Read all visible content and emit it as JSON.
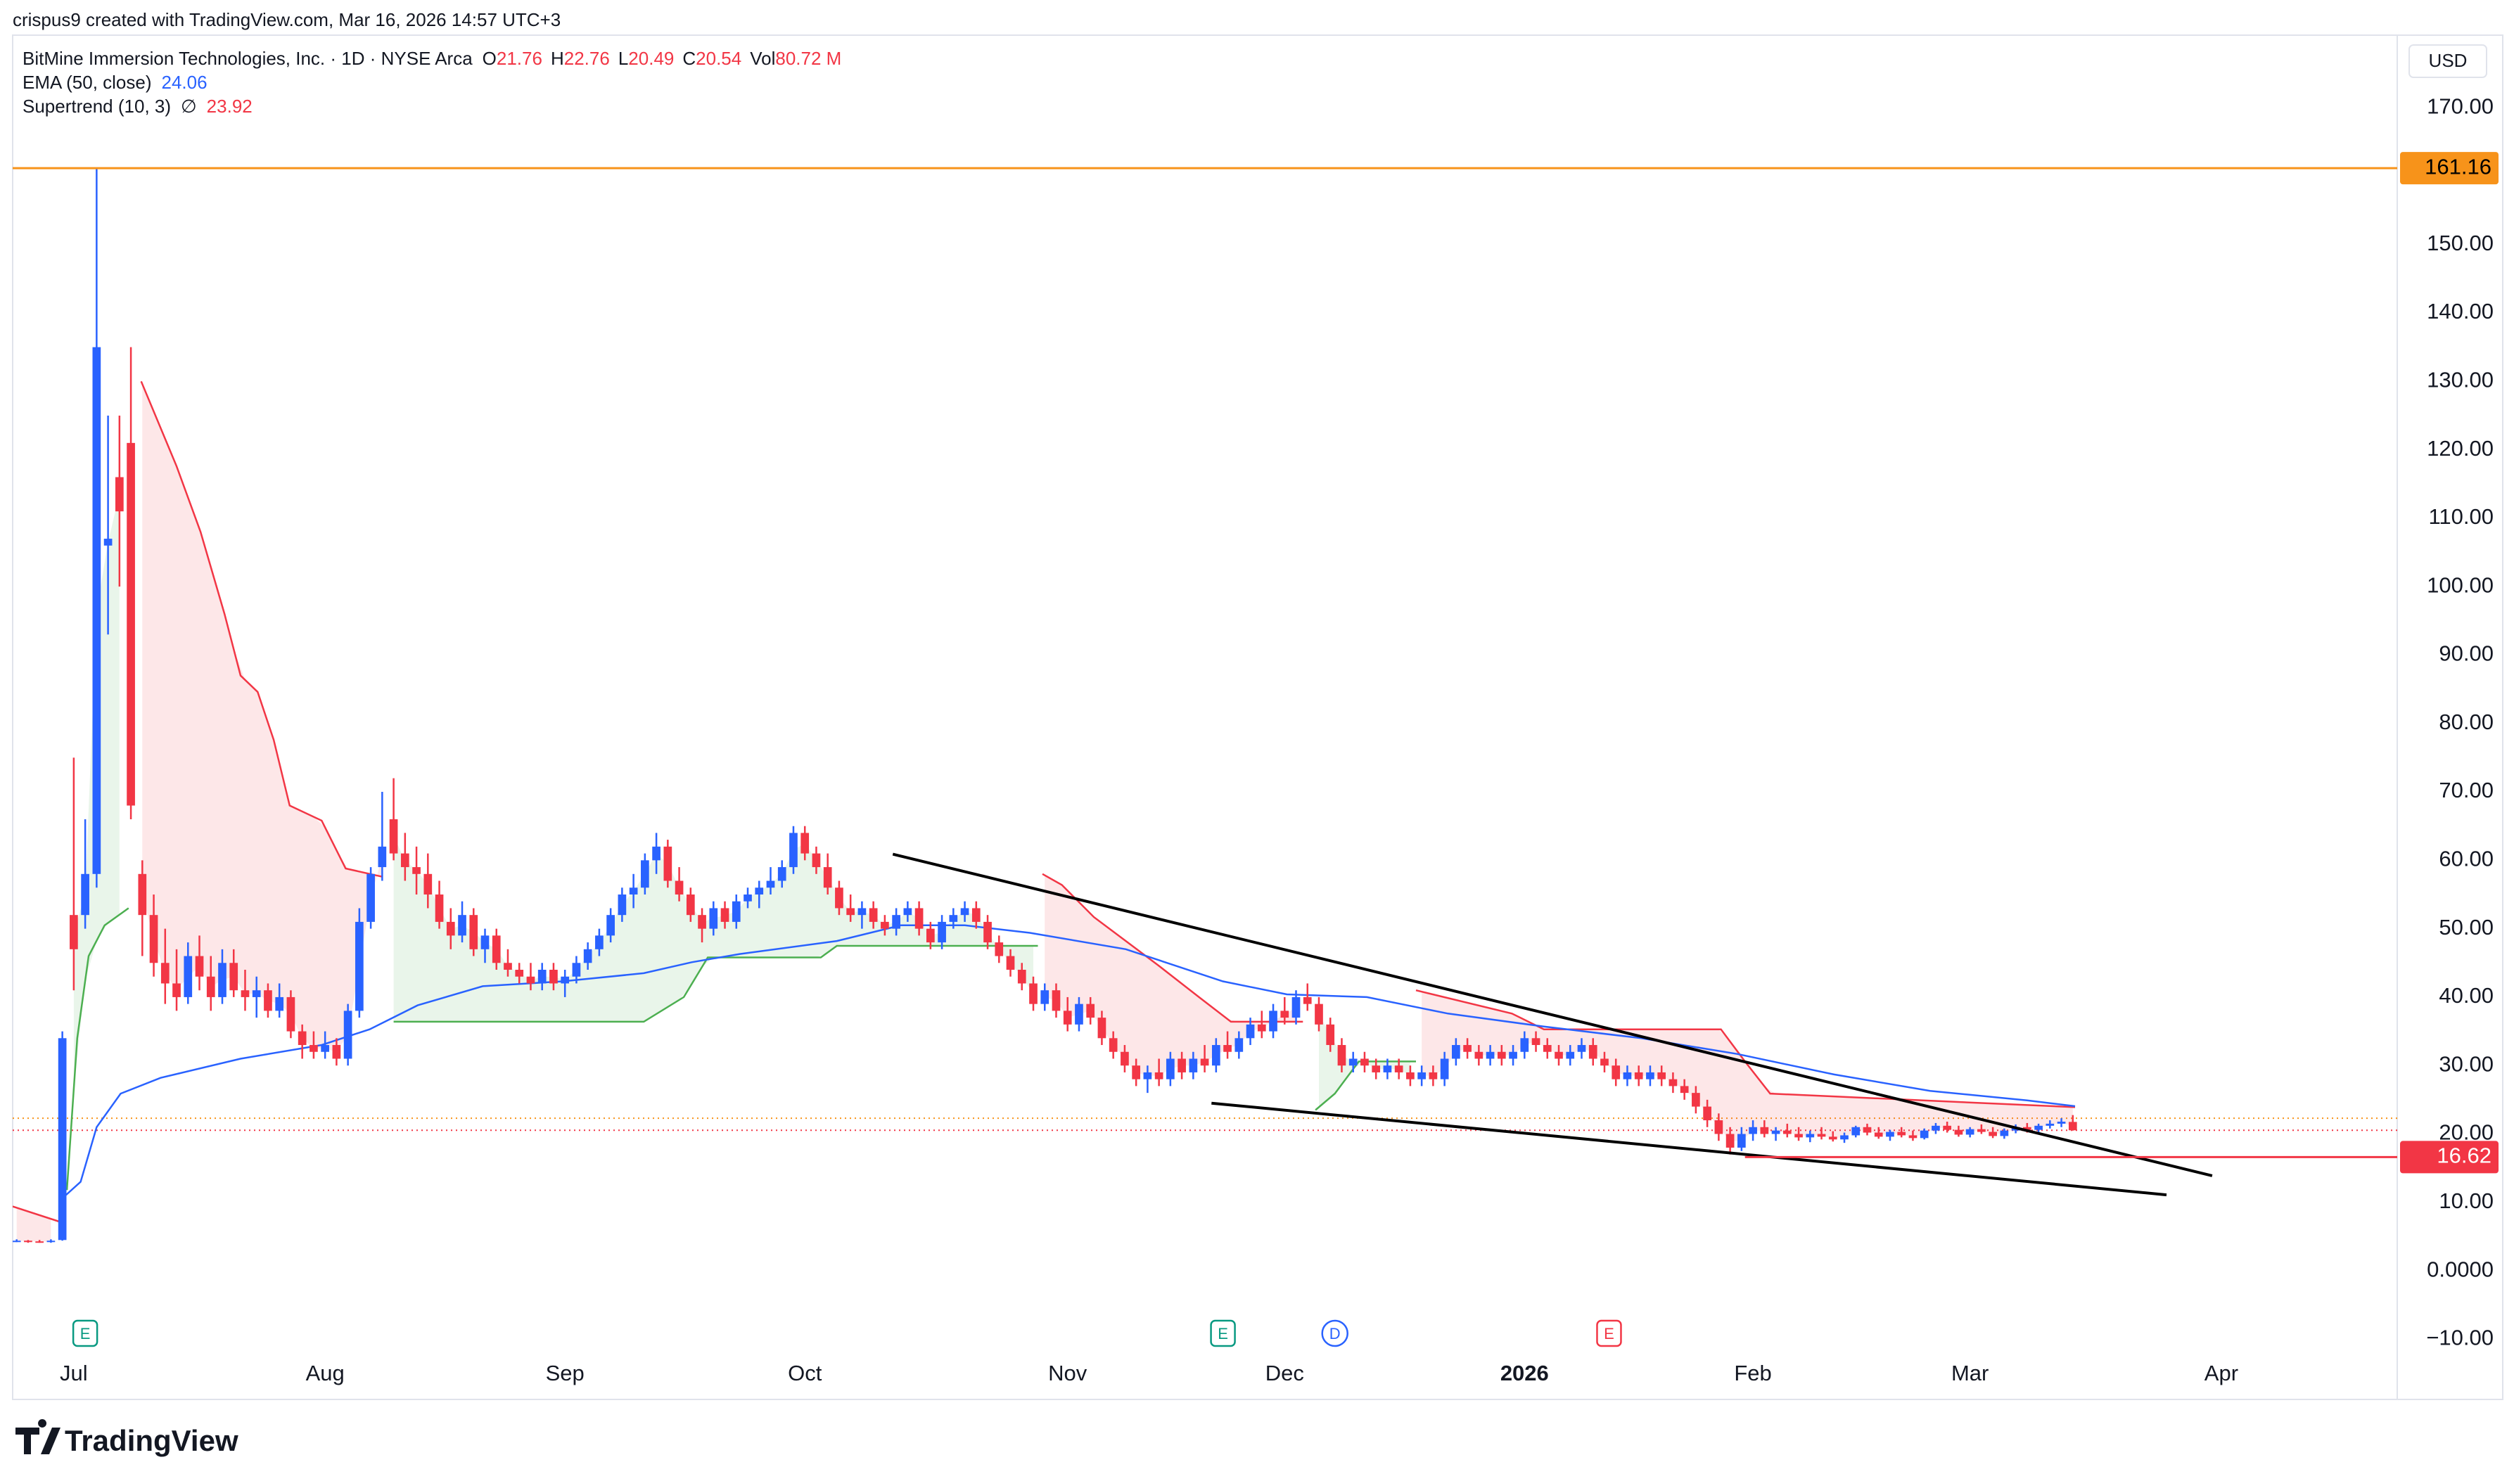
{
  "header": "crispus9 created with TradingView.com, Mar 16, 2026 14:57 UTC+3",
  "footer": "TradingView",
  "chart_data": {
    "type": "candlestick",
    "legend": {
      "symbol": "BitMine Immersion Technologies, Inc. · 1D · NYSE Arca",
      "ohlc": [
        {
          "key": "O",
          "value": "21.76"
        },
        {
          "key": "H",
          "value": "22.76"
        },
        {
          "key": "L",
          "value": "20.49"
        },
        {
          "key": "C",
          "value": "20.54"
        },
        {
          "key": "Vol",
          "value": "80.72 M"
        }
      ],
      "ema": {
        "name": "EMA (50, close)",
        "value": "24.06"
      },
      "supertrend": {
        "name": "Supertrend (10, 3)",
        "symbol": "∅",
        "value": "23.92"
      }
    },
    "currency": "USD",
    "up_color": "#2962ff",
    "down_color": "#f23645",
    "xlim": [
      -0.35,
      208.4
    ],
    "ylim": [
      -18.8,
      180.6
    ],
    "xticks": [
      {
        "value": 5,
        "label": "Jul"
      },
      {
        "value": 27,
        "label": "Aug"
      },
      {
        "value": 48,
        "label": "Sep"
      },
      {
        "value": 69,
        "label": "Oct"
      },
      {
        "value": 92,
        "label": "Nov"
      },
      {
        "value": 111,
        "label": "Dec"
      },
      {
        "value": 132,
        "label": "2026",
        "bold": true
      },
      {
        "value": 152,
        "label": "Feb"
      },
      {
        "value": 171,
        "label": "Mar"
      },
      {
        "value": 193,
        "label": "Apr"
      }
    ],
    "yticks": [
      {
        "value": 170,
        "label": "170.00"
      },
      {
        "value": 150,
        "label": "150.00"
      },
      {
        "value": 140,
        "label": "140.00"
      },
      {
        "value": 130,
        "label": "130.00"
      },
      {
        "value": 120,
        "label": "120.00"
      },
      {
        "value": 110,
        "label": "110.00"
      },
      {
        "value": 100,
        "label": "100.00"
      },
      {
        "value": 90,
        "label": "90.00"
      },
      {
        "value": 80,
        "label": "80.00"
      },
      {
        "value": 70,
        "label": "70.00"
      },
      {
        "value": 60,
        "label": "60.00"
      },
      {
        "value": 50,
        "label": "50.00"
      },
      {
        "value": 40,
        "label": "40.00"
      },
      {
        "value": 30,
        "label": "30.00"
      },
      {
        "value": 20,
        "label": "20.00"
      },
      {
        "value": 10,
        "label": "10.00"
      },
      {
        "value": 0,
        "label": "0.0000"
      },
      {
        "value": -10,
        "label": "−10.00"
      }
    ],
    "candles": [
      [
        4.4,
        4.6,
        4.2,
        4.4
      ],
      [
        4.4,
        4.5,
        4.1,
        4.3
      ],
      [
        4.3,
        4.5,
        4.1,
        4.2
      ],
      [
        4.2,
        4.6,
        4.1,
        4.4
      ],
      [
        4.5,
        35,
        4.4,
        34
      ],
      [
        52,
        75,
        41,
        47
      ],
      [
        52,
        66,
        50,
        58
      ],
      [
        58,
        161.16,
        56,
        135
      ],
      [
        106,
        125,
        93,
        107
      ],
      [
        116,
        125,
        100,
        111
      ],
      [
        121,
        135,
        66,
        68
      ],
      [
        58,
        60,
        46,
        52
      ],
      [
        52,
        55,
        43,
        45
      ],
      [
        45,
        50,
        39,
        42
      ],
      [
        42,
        47,
        38,
        40
      ],
      [
        40,
        48,
        39,
        46
      ],
      [
        46,
        49,
        41,
        43
      ],
      [
        43,
        46,
        38,
        40
      ],
      [
        40,
        47,
        39,
        45
      ],
      [
        45,
        47,
        40,
        41
      ],
      [
        41,
        44,
        38,
        40
      ],
      [
        40,
        43,
        37,
        41
      ],
      [
        41,
        42,
        37,
        38
      ],
      [
        38,
        42,
        37,
        40
      ],
      [
        40,
        41,
        34,
        35
      ],
      [
        35,
        36,
        31,
        33
      ],
      [
        33,
        35,
        31,
        32
      ],
      [
        32,
        35,
        31,
        33
      ],
      [
        33,
        34,
        30,
        31
      ],
      [
        31,
        39,
        30,
        38
      ],
      [
        38,
        53,
        37,
        51
      ],
      [
        51,
        59,
        50,
        58
      ],
      [
        59,
        70,
        57,
        62
      ],
      [
        66,
        72,
        60,
        61
      ],
      [
        61,
        64,
        57,
        59
      ],
      [
        59,
        62,
        55,
        58
      ],
      [
        58,
        61,
        53,
        55
      ],
      [
        55,
        57,
        50,
        51
      ],
      [
        51,
        53,
        47,
        49
      ],
      [
        49,
        54,
        48,
        52
      ],
      [
        52,
        53,
        46,
        47
      ],
      [
        47,
        50,
        45,
        49
      ],
      [
        49,
        50,
        44,
        45
      ],
      [
        45,
        47,
        43,
        44
      ],
      [
        44,
        45,
        42,
        43
      ],
      [
        43,
        45,
        41,
        42
      ],
      [
        42,
        45,
        41,
        44
      ],
      [
        44,
        45,
        41,
        42
      ],
      [
        42,
        44,
        40,
        43
      ],
      [
        43,
        46,
        42,
        45
      ],
      [
        45,
        48,
        44,
        47
      ],
      [
        47,
        50,
        46,
        49
      ],
      [
        49,
        53,
        48,
        52
      ],
      [
        52,
        56,
        51,
        55
      ],
      [
        55,
        58,
        53,
        56
      ],
      [
        56,
        61,
        55,
        60
      ],
      [
        60,
        64,
        58,
        62
      ],
      [
        62,
        63,
        56,
        57
      ],
      [
        57,
        59,
        54,
        55
      ],
      [
        55,
        56,
        51,
        52
      ],
      [
        52,
        53,
        48,
        50
      ],
      [
        50,
        54,
        49,
        53
      ],
      [
        53,
        54,
        50,
        51
      ],
      [
        51,
        55,
        50,
        54
      ],
      [
        54,
        56,
        53,
        55
      ],
      [
        55,
        57,
        53,
        56
      ],
      [
        56,
        59,
        55,
        57
      ],
      [
        57,
        60,
        56,
        59
      ],
      [
        59,
        65,
        58,
        64
      ],
      [
        64,
        65,
        60,
        61
      ],
      [
        61,
        62,
        58,
        59
      ],
      [
        59,
        61,
        55,
        56
      ],
      [
        56,
        57,
        52,
        53
      ],
      [
        53,
        55,
        51,
        52
      ],
      [
        52,
        54,
        50,
        53
      ],
      [
        53,
        54,
        50,
        51
      ],
      [
        51,
        52,
        49,
        50
      ],
      [
        50,
        53,
        49,
        52
      ],
      [
        52,
        54,
        51,
        53
      ],
      [
        53,
        54,
        49,
        50
      ],
      [
        50,
        51,
        47,
        48
      ],
      [
        48,
        52,
        47,
        51
      ],
      [
        51,
        53,
        50,
        52
      ],
      [
        52,
        54,
        51,
        53
      ],
      [
        53,
        54,
        50,
        51
      ],
      [
        51,
        52,
        47,
        48
      ],
      [
        48,
        49,
        45,
        46
      ],
      [
        46,
        47,
        43,
        44
      ],
      [
        44,
        45,
        41,
        42
      ],
      [
        42,
        43,
        38,
        39
      ],
      [
        39,
        42,
        38,
        41
      ],
      [
        41,
        42,
        37,
        38
      ],
      [
        38,
        40,
        35,
        36
      ],
      [
        36,
        40,
        35,
        39
      ],
      [
        39,
        40,
        36,
        37
      ],
      [
        37,
        38,
        33,
        34
      ],
      [
        34,
        35,
        31,
        32
      ],
      [
        32,
        33,
        29,
        30
      ],
      [
        30,
        31,
        27,
        28
      ],
      [
        28,
        30,
        26,
        29
      ],
      [
        29,
        31,
        27,
        28
      ],
      [
        28,
        32,
        27,
        31
      ],
      [
        31,
        32,
        28,
        29
      ],
      [
        29,
        32,
        28,
        31
      ],
      [
        31,
        33,
        29,
        30
      ],
      [
        30,
        34,
        29,
        33
      ],
      [
        33,
        35,
        31,
        32
      ],
      [
        32,
        35,
        31,
        34
      ],
      [
        34,
        37,
        33,
        36
      ],
      [
        36,
        38,
        34,
        35
      ],
      [
        35,
        39,
        34,
        38
      ],
      [
        38,
        40,
        36,
        37
      ],
      [
        37,
        41,
        36,
        40
      ],
      [
        40,
        42,
        38,
        39
      ],
      [
        39,
        40,
        35,
        36
      ],
      [
        36,
        37,
        32,
        33
      ],
      [
        33,
        34,
        29,
        30
      ],
      [
        30,
        32,
        29,
        31
      ],
      [
        31,
        32,
        29,
        30
      ],
      [
        30,
        31,
        28,
        29
      ],
      [
        29,
        31,
        28,
        30
      ],
      [
        30,
        31,
        28,
        29
      ],
      [
        29,
        30,
        27,
        28
      ],
      [
        28,
        30,
        27,
        29
      ],
      [
        29,
        30,
        27,
        28
      ],
      [
        28,
        32,
        27,
        31
      ],
      [
        31,
        34,
        30,
        33
      ],
      [
        33,
        34,
        31,
        32
      ],
      [
        32,
        33,
        30,
        31
      ],
      [
        31,
        33,
        30,
        32
      ],
      [
        32,
        33,
        30,
        31
      ],
      [
        31,
        33,
        30,
        32
      ],
      [
        32,
        35,
        31,
        34
      ],
      [
        34,
        35,
        32,
        33
      ],
      [
        33,
        34,
        31,
        32
      ],
      [
        32,
        33,
        30,
        31
      ],
      [
        31,
        33,
        30,
        32
      ],
      [
        32,
        34,
        31,
        33
      ],
      [
        33,
        34,
        30,
        31
      ],
      [
        31,
        32,
        29,
        30
      ],
      [
        30,
        31,
        27,
        28
      ],
      [
        28,
        30,
        27,
        29
      ],
      [
        29,
        30,
        27,
        28
      ],
      [
        28,
        30,
        27,
        29
      ],
      [
        29,
        30,
        27,
        28
      ],
      [
        28,
        29,
        26,
        27
      ],
      [
        27,
        28,
        25,
        26
      ],
      [
        26,
        27,
        23,
        24
      ],
      [
        24,
        25,
        21,
        22
      ],
      [
        22,
        23,
        19,
        20
      ],
      [
        20,
        21,
        17,
        18
      ],
      [
        18,
        21,
        17.5,
        20
      ],
      [
        20,
        22,
        19,
        21
      ],
      [
        21,
        22,
        19.5,
        20
      ],
      [
        20,
        21,
        19,
        20.5
      ],
      [
        20.5,
        21.5,
        19.5,
        20
      ],
      [
        20,
        21,
        19,
        19.5
      ],
      [
        19.5,
        20.5,
        18.8,
        20
      ],
      [
        20,
        21,
        19.2,
        19.6
      ],
      [
        19.6,
        20.4,
        18.9,
        19.2
      ],
      [
        19.2,
        20.2,
        18.7,
        19.8
      ],
      [
        19.8,
        21.2,
        19.5,
        21
      ],
      [
        21,
        21.5,
        19.8,
        20.2
      ],
      [
        20.2,
        21,
        19.3,
        19.6
      ],
      [
        19.6,
        20.6,
        19,
        20.3
      ],
      [
        20.3,
        21,
        19.5,
        19.8
      ],
      [
        19.8,
        20.5,
        19,
        19.4
      ],
      [
        19.4,
        20.8,
        19.2,
        20.5
      ],
      [
        20.5,
        21.6,
        20,
        21.2
      ],
      [
        21.2,
        21.8,
        20.2,
        20.6
      ],
      [
        20.6,
        21.2,
        19.6,
        19.9
      ],
      [
        19.9,
        21,
        19.5,
        20.7
      ],
      [
        20.7,
        21.4,
        20,
        20.3
      ],
      [
        20.3,
        21,
        19.4,
        19.7
      ],
      [
        19.7,
        20.8,
        19.3,
        20.5
      ],
      [
        20.5,
        21.4,
        20.1,
        21
      ],
      [
        21,
        21.6,
        20.2,
        20.6
      ],
      [
        20.6,
        21.5,
        20.2,
        21.2
      ],
      [
        21.2,
        22,
        20.8,
        21.5
      ],
      [
        21.5,
        22.3,
        21,
        21.8
      ],
      [
        21.76,
        22.76,
        20.49,
        20.54
      ]
    ],
    "ema": {
      "color": "#2962ff",
      "x": [
        4.0,
        5.6,
        7.0,
        9.1,
        12.6,
        19.6,
        26.7,
        30.9,
        35.1,
        40.8,
        47.8,
        54.9,
        59.1,
        63.3,
        71.8,
        77.4,
        83.0,
        88.7,
        97.1,
        105.6,
        111.2,
        118.2,
        125.3,
        133.7,
        142.2,
        150.6,
        159.1,
        167.5,
        176.0,
        180.2
      ],
      "values": [
        10.6,
        13,
        21,
        25.9,
        28.2,
        31,
        33,
        35.3,
        38.8,
        41.6,
        42.3,
        43.5,
        45.1,
        46.3,
        48.2,
        50.5,
        50.5,
        49.4,
        47,
        42.3,
        40.4,
        40,
        37.6,
        35.7,
        34,
        31.7,
        28.7,
        26.3,
        24.9,
        24.06
      ]
    },
    "supertrend": [
      {
        "color": "#f23645",
        "fill": "rgba(242,54,69,0.12)",
        "x": [
          -0.35,
          3.9,
          null,
          10.9,
          14.0,
          16.1,
          18.2,
          19.6,
          21.1,
          22.5,
          23.9,
          26.7,
          28.8,
          32.0,
          null,
          89.8,
          91.5,
          94.3,
          97.1,
          99.9,
          103.5,
          106.3,
          112.6,
          null,
          122.5,
          130.9,
          133.7,
          149.2,
          151.3,
          153.5,
          180.2
        ],
        "values": [
          9.4,
          7.1,
          null,
          130,
          117.6,
          108,
          96,
          87,
          84.6,
          77.6,
          68,
          65.8,
          58.8,
          57.6,
          null,
          58,
          56.4,
          51.7,
          48.2,
          44.7,
          40,
          36.4,
          36.4,
          null,
          41,
          37.6,
          35.3,
          35.3,
          30.6,
          25.9,
          23.92
        ]
      },
      {
        "color": "#4caf50",
        "fill": "rgba(76,175,80,0.12)",
        "x": [
          4.4,
          5.3,
          6.3,
          7.7,
          9.8,
          null,
          33.0,
          54.9,
          58.4,
          60.5,
          70.4,
          71.8,
          89.4,
          null,
          113.7,
          115.4,
          117.5,
          122.5
        ],
        "values": [
          11.8,
          34,
          46,
          50.5,
          53,
          null,
          36.4,
          36.4,
          40,
          45.8,
          45.8,
          47.5,
          47.5,
          null,
          23.5,
          25.9,
          30.6,
          30.6
        ]
      }
    ],
    "trendlines": [
      {
        "color": "#000000",
        "x": [
          76.7,
          192.2
        ],
        "values": [
          60.9,
          13.9
        ]
      },
      {
        "color": "#000000",
        "x": [
          104.6,
          188.2
        ],
        "values": [
          24.5,
          11.1
        ]
      }
    ],
    "price_lines": [
      {
        "value": 161.16,
        "label": "161.16",
        "color": "#f7931a",
        "text_color": "#000000",
        "from": -0.35
      },
      {
        "value": 16.62,
        "label": "16.62",
        "color": "#f23645",
        "text_color": "#ffffff",
        "from": 151.3
      }
    ],
    "dotted_lines": [
      {
        "value": 22.3,
        "color": "#f7931a"
      },
      {
        "value": 20.54,
        "color": "#f23645"
      }
    ],
    "events": [
      {
        "label": "E",
        "x": 6.0,
        "color": "#089981"
      },
      {
        "label": "E",
        "x": 105.6,
        "color": "#089981"
      },
      {
        "label": "D",
        "x": 115.4,
        "color": "#2962ff"
      },
      {
        "label": "E",
        "x": 139.4,
        "color": "#f23645"
      }
    ]
  }
}
